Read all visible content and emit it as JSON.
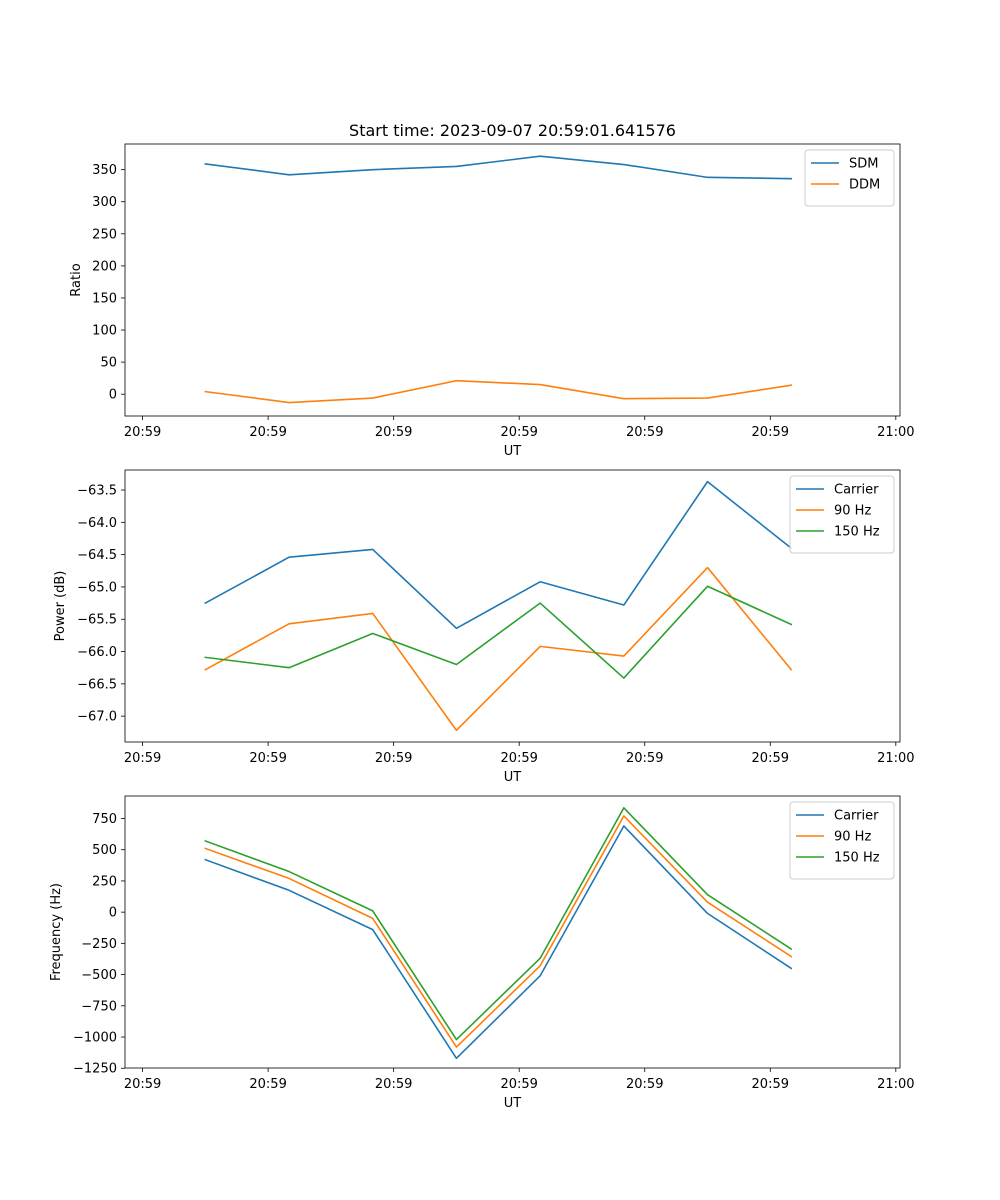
{
  "figure_title": "Start time: 2023-09-07 20:59:01.641576",
  "chart_data": [
    {
      "type": "line",
      "title": "Start time: 2023-09-07 20:59:01.641576",
      "xlabel": "UT",
      "ylabel": "Ratio",
      "x": [
        1,
        2,
        3,
        4,
        5,
        6,
        7,
        8
      ],
      "x_tick_values": [
        0.25,
        1.75,
        3.25,
        4.75,
        6.25,
        7.75,
        9.25
      ],
      "x_tick_labels": [
        "20:59",
        "20:59",
        "20:59",
        "20:59",
        "20:59",
        "20:59",
        "21:00"
      ],
      "xlim": [
        0.04,
        9.3
      ],
      "ylim": [
        -34,
        390
      ],
      "y_tick_values": [
        0,
        50,
        100,
        150,
        200,
        250,
        300,
        350
      ],
      "y_tick_labels": [
        "0",
        "50",
        "100",
        "150",
        "200",
        "250",
        "300",
        "350"
      ],
      "legend_position": "top-right",
      "series": [
        {
          "name": "SDM",
          "color": "#1f77b4",
          "values": [
            359,
            342,
            350,
            355,
            371,
            358,
            338,
            336
          ]
        },
        {
          "name": "DDM",
          "color": "#ff7f0e",
          "values": [
            4,
            -13,
            -6,
            21,
            15,
            -7,
            -6,
            14
          ]
        }
      ]
    },
    {
      "type": "line",
      "title": "",
      "xlabel": "UT",
      "ylabel": "Power (dB)",
      "x": [
        1,
        2,
        3,
        4,
        5,
        6,
        7,
        8
      ],
      "x_tick_values": [
        0.25,
        1.75,
        3.25,
        4.75,
        6.25,
        7.75,
        9.25
      ],
      "x_tick_labels": [
        "20:59",
        "20:59",
        "20:59",
        "20:59",
        "20:59",
        "20:59",
        "21:00"
      ],
      "xlim": [
        0.04,
        9.3
      ],
      "ylim": [
        -67.4,
        -63.19
      ],
      "y_tick_values": [
        -67.0,
        -66.5,
        -66.0,
        -65.5,
        -65.0,
        -64.5,
        -64.0,
        -63.5
      ],
      "y_tick_labels": [
        "−67.0",
        "−66.5",
        "−66.0",
        "−65.5",
        "−65.0",
        "−64.5",
        "−64.0",
        "−63.5"
      ],
      "legend_position": "top-right",
      "series": [
        {
          "name": "Carrier",
          "color": "#1f77b4",
          "values": [
            -65.25,
            -64.54,
            -64.42,
            -65.64,
            -64.92,
            -65.28,
            -63.37,
            -64.4
          ]
        },
        {
          "name": "90 Hz",
          "color": "#ff7f0e",
          "values": [
            -66.28,
            -65.57,
            -65.41,
            -67.22,
            -65.92,
            -66.07,
            -64.7,
            -66.28
          ]
        },
        {
          "name": "150 Hz",
          "color": "#2ca02c",
          "values": [
            -66.09,
            -66.25,
            -65.72,
            -66.2,
            -65.25,
            -66.41,
            -64.99,
            -65.58
          ]
        }
      ]
    },
    {
      "type": "line",
      "title": "",
      "xlabel": "UT",
      "ylabel": "Frequency (Hz)",
      "x": [
        1,
        2,
        3,
        4,
        5,
        6,
        7,
        8
      ],
      "x_tick_values": [
        0.25,
        1.75,
        3.25,
        4.75,
        6.25,
        7.75,
        9.25
      ],
      "x_tick_labels": [
        "20:59",
        "20:59",
        "20:59",
        "20:59",
        "20:59",
        "20:59",
        "21:00"
      ],
      "xlim": [
        0.04,
        9.3
      ],
      "ylim": [
        -1248,
        930
      ],
      "y_tick_values": [
        -1250,
        -1000,
        -750,
        -500,
        -250,
        0,
        250,
        500,
        750
      ],
      "y_tick_labels": [
        "−1250",
        "−1000",
        "−750",
        "−500",
        "−250",
        "0",
        "250",
        "500",
        "750"
      ],
      "legend_position": "top-right",
      "series": [
        {
          "name": "Carrier",
          "color": "#1f77b4",
          "values": [
            420,
            175,
            -140,
            -1170,
            -510,
            690,
            -10,
            -450
          ]
        },
        {
          "name": "90 Hz",
          "color": "#ff7f0e",
          "values": [
            510,
            270,
            -50,
            -1080,
            -430,
            770,
            80,
            -355
          ]
        },
        {
          "name": "150 Hz",
          "color": "#2ca02c",
          "values": [
            570,
            325,
            10,
            -1020,
            -370,
            835,
            140,
            -295
          ]
        }
      ]
    }
  ]
}
